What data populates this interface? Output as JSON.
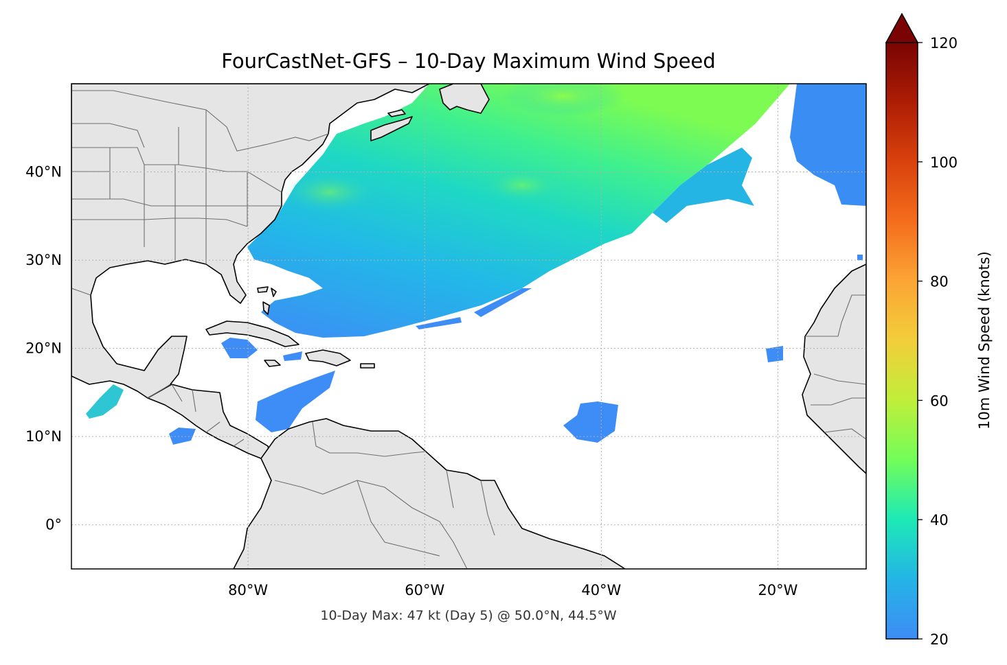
{
  "title": "FourCastNet-GFS – 10-Day Maximum Wind Speed",
  "annotation": "10-Day Max: 47 kt (Day 5) @ 50.0°N, 44.5°W",
  "map": {
    "lon_range": [
      -100,
      -10
    ],
    "lat_range": [
      -5,
      50
    ],
    "lon_ticks": [
      {
        "value": -80,
        "label": "80°W"
      },
      {
        "value": -60,
        "label": "60°W"
      },
      {
        "value": -40,
        "label": "40°W"
      },
      {
        "value": -20,
        "label": "20°W"
      }
    ],
    "lat_ticks": [
      {
        "value": 40,
        "label": "40°N"
      },
      {
        "value": 30,
        "label": "30°N"
      },
      {
        "value": 20,
        "label": "20°N"
      },
      {
        "value": 10,
        "label": "10°N"
      },
      {
        "value": 0,
        "label": "0°"
      }
    ],
    "land_color": "#e5e5e5",
    "ocean_color": "#ffffff",
    "coast_color": "#000000",
    "border_color": "#6e6e6e",
    "grid": true
  },
  "colorbar": {
    "label": "10m Wind Speed (knots)",
    "range": [
      20,
      120
    ],
    "ticks": [
      {
        "value": 20,
        "label": "20"
      },
      {
        "value": 40,
        "label": "40"
      },
      {
        "value": 60,
        "label": "60"
      },
      {
        "value": 80,
        "label": "80"
      },
      {
        "value": 100,
        "label": "100"
      },
      {
        "value": 120,
        "label": "120"
      }
    ],
    "extend": "max",
    "colormap": "turbo"
  },
  "wind_field": {
    "threshold_kt": 20,
    "max_value_kt": 47,
    "max_day": 5,
    "max_location": {
      "lat": 50.0,
      "lon": -44.5
    }
  }
}
